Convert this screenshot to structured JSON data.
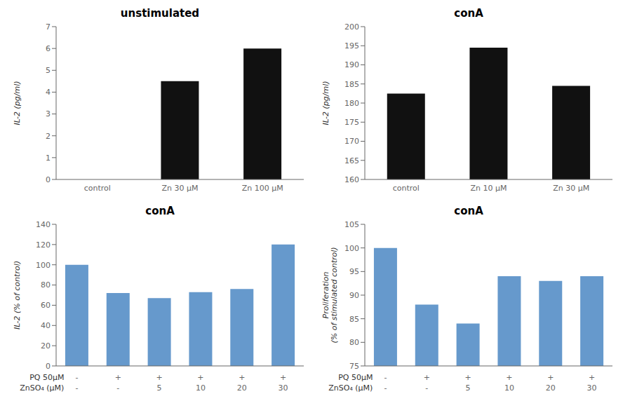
{
  "chart_data": [
    {
      "type": "bar",
      "title": "unstimulated",
      "categories": [
        "control",
        "Zn 30 μM",
        "Zn 100 μM"
      ],
      "values": [
        0,
        4.5,
        6.0
      ],
      "color": "#111111",
      "y_label": "IL-2 (pg/ml)",
      "ylim": [
        0,
        7
      ],
      "yticks": [
        0,
        1,
        2,
        3,
        4,
        5,
        6,
        7
      ],
      "grid": false
    },
    {
      "type": "bar",
      "title": "conA",
      "categories": [
        "control",
        "Zn 10 μM",
        "Zn 30 μM"
      ],
      "values": [
        182.5,
        194.5,
        184.5
      ],
      "color": "#111111",
      "y_label": "IL-2 (pg/ml)",
      "ylim": [
        160,
        200
      ],
      "yticks": [
        160,
        165,
        170,
        175,
        180,
        185,
        190,
        195,
        200
      ],
      "grid": false
    },
    {
      "type": "bar",
      "title": "conA",
      "categories": [
        null,
        null,
        null,
        null,
        null,
        null
      ],
      "values": [
        100,
        72,
        67,
        73,
        76,
        120
      ],
      "color": "#6699cc",
      "y_label": "IL-2 (% of control)",
      "ylim": [
        0,
        140
      ],
      "yticks": [
        0,
        20,
        40,
        60,
        80,
        100,
        120,
        140
      ],
      "grid": false,
      "annotations": [
        {
          "text": "PQ 50μM",
          "labels": [
            "-",
            "+",
            "+",
            "+",
            "+",
            "+"
          ]
        },
        {
          "text": "ZnSO₄ (μM)",
          "labels": [
            "-",
            "-",
            "5",
            "10",
            "20",
            "30"
          ]
        }
      ]
    },
    {
      "type": "bar",
      "title": "conA",
      "categories": [
        null,
        null,
        null,
        null,
        null,
        null
      ],
      "values": [
        100,
        88,
        84,
        94,
        93,
        94
      ],
      "color": "#6699cc",
      "y_label": "Proliferation\n(% of stimulated control)",
      "ylim": [
        75,
        105
      ],
      "yticks": [
        75,
        80,
        85,
        90,
        95,
        100,
        105
      ],
      "grid": false,
      "annotations": [
        {
          "text": "PQ 50μM",
          "labels": [
            "-",
            "+",
            "+",
            "+",
            "+",
            "+"
          ]
        },
        {
          "text": "ZnSO₄ (μM)",
          "labels": [
            "-",
            "-",
            "5",
            "10",
            "20",
            "30"
          ]
        }
      ]
    }
  ]
}
